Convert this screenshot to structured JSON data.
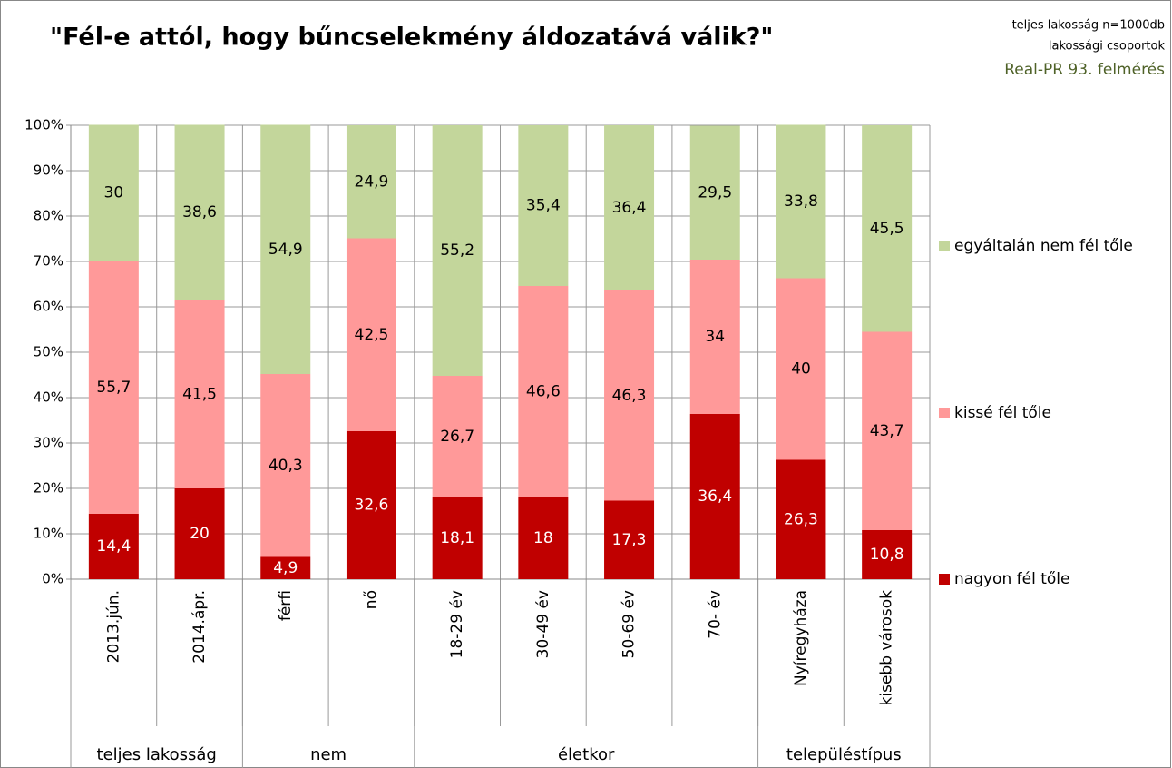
{
  "chart_data": {
    "type": "stacked_bar",
    "title": "\"Fél-e attól, hogy bűncselekmény áldozatává válik?\"",
    "notes": [
      "teljes lakosság n=1000db",
      "lakossági csoportok",
      "Real-PR 93. felmérés"
    ],
    "categories": [
      "2013.jún.",
      "2014.ápr.",
      "férfi",
      "nő",
      "18-29 év",
      "30-49 év",
      "50-69 év",
      "70- év",
      "Nyíregyháza",
      "kisebb városok"
    ],
    "groups": [
      {
        "label": "teljes lakosság",
        "size": 2
      },
      {
        "label": "nem",
        "size": 2
      },
      {
        "label": "életkor",
        "size": 4
      },
      {
        "label": "településtípus",
        "size": 2
      }
    ],
    "series": [
      {
        "name": "nagyon fél tőle",
        "color": "#c00000",
        "values": [
          14.4,
          20,
          4.9,
          32.6,
          18.1,
          18,
          17.3,
          36.4,
          26.3,
          10.8
        ],
        "value_labels": [
          "14,4",
          "20",
          "4,9",
          "32,6",
          "18,1",
          "18",
          "17,3",
          "36,4",
          "26,3",
          "10,8"
        ]
      },
      {
        "name": "kissé fél tőle",
        "color": "#ff9999",
        "values": [
          55.7,
          41.5,
          40.3,
          42.5,
          26.7,
          46.6,
          46.3,
          34,
          40,
          43.7
        ],
        "value_labels": [
          "55,7",
          "41,5",
          "40,3",
          "42,5",
          "26,7",
          "46,6",
          "46,3",
          "34",
          "40",
          "43,7"
        ]
      },
      {
        "name": "egyáltalán nem fél tőle",
        "color": "#c3d69b",
        "values": [
          30,
          38.6,
          54.9,
          24.9,
          55.2,
          35.4,
          36.4,
          29.5,
          33.8,
          45.5
        ],
        "value_labels": [
          "30",
          "38,6",
          "54,9",
          "24,9",
          "55,2",
          "35,4",
          "36,4",
          "29,5",
          "33,8",
          "45,5"
        ]
      }
    ],
    "ylim": [
      0,
      100
    ],
    "yticks": [
      {
        "value": 0,
        "label": "0%"
      },
      {
        "value": 10,
        "label": "10%"
      },
      {
        "value": 20,
        "label": "20%"
      },
      {
        "value": 30,
        "label": "30%"
      },
      {
        "value": 40,
        "label": "40%"
      },
      {
        "value": 50,
        "label": "50%"
      },
      {
        "value": 60,
        "label": "60%"
      },
      {
        "value": 70,
        "label": "70%"
      },
      {
        "value": 80,
        "label": "80%"
      },
      {
        "value": 90,
        "label": "90%"
      },
      {
        "value": 100,
        "label": "100%"
      }
    ],
    "grid": true,
    "legend": "right"
  }
}
